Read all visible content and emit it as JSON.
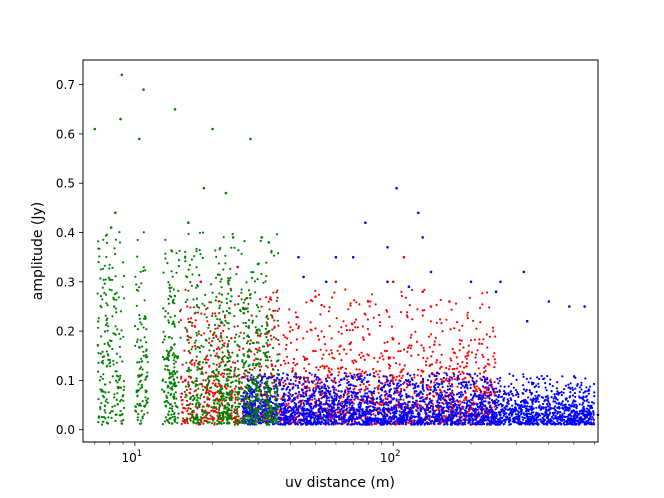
{
  "chart_data": {
    "type": "scatter",
    "title": "",
    "xlabel": "uv distance (m)",
    "ylabel": "amplitude (Jy)",
    "xscale": "log",
    "xlim": [
      6.3,
      620
    ],
    "ylim": [
      -0.025,
      0.75
    ],
    "grid": false,
    "legend": "none",
    "x_ticks": [
      {
        "value": 10,
        "label": "10",
        "exp": "1"
      },
      {
        "value": 100,
        "label": "10",
        "exp": "2"
      }
    ],
    "y_ticks": [
      {
        "value": 0.0,
        "label": "0.0"
      },
      {
        "value": 0.1,
        "label": "0.1"
      },
      {
        "value": 0.2,
        "label": "0.2"
      },
      {
        "value": 0.3,
        "label": "0.3"
      },
      {
        "value": 0.4,
        "label": "0.4"
      },
      {
        "value": 0.5,
        "label": "0.5"
      },
      {
        "value": 0.6,
        "label": "0.6"
      },
      {
        "value": 0.7,
        "label": "0.7"
      }
    ],
    "series": [
      {
        "color": "#ff0000",
        "x_range": [
          15,
          250
        ],
        "typical_amplitude_max": 0.25,
        "points": [
          [
            60,
            0.3
          ],
          [
            100,
            0.3
          ],
          [
            130,
            0.28
          ],
          [
            165,
            0.26
          ],
          [
            110,
            0.35
          ],
          [
            18,
            0.3
          ],
          [
            25,
            0.33
          ],
          [
            50,
            0.27
          ],
          [
            80,
            0.26
          ],
          [
            140,
            0.25
          ]
        ]
      },
      {
        "color": "#0000ff",
        "x_range": [
          26,
          600
        ],
        "typical_amplitude_max": 0.1,
        "points": [
          [
            103,
            0.49
          ],
          [
            125,
            0.44
          ],
          [
            78,
            0.42
          ],
          [
            130,
            0.39
          ],
          [
            95,
            0.37
          ],
          [
            60,
            0.35
          ],
          [
            70,
            0.35
          ],
          [
            320,
            0.32
          ],
          [
            480,
            0.25
          ],
          [
            550,
            0.25
          ],
          [
            140,
            0.32
          ],
          [
            200,
            0.3
          ],
          [
            250,
            0.28
          ],
          [
            260,
            0.3
          ],
          [
            400,
            0.26
          ],
          [
            330,
            0.22
          ],
          [
            45,
            0.31
          ],
          [
            55,
            0.3
          ],
          [
            115,
            0.29
          ],
          [
            95,
            0.3
          ],
          [
            43,
            0.35
          ],
          [
            620,
            0.03
          ]
        ]
      },
      {
        "color": "#008000",
        "x_range": [
          7,
          40
        ],
        "typical_amplitude_max": 0.35,
        "points": [
          [
            8.9,
            0.72
          ],
          [
            10.8,
            0.69
          ],
          [
            14.3,
            0.65
          ],
          [
            7.0,
            0.61
          ],
          [
            8.8,
            0.63
          ],
          [
            20,
            0.61
          ],
          [
            28,
            0.59
          ],
          [
            10.4,
            0.59
          ],
          [
            18.5,
            0.49
          ],
          [
            22.5,
            0.48
          ],
          [
            8.1,
            0.41
          ],
          [
            8.4,
            0.44
          ],
          [
            16.1,
            0.42
          ],
          [
            24,
            0.39
          ],
          [
            31,
            0.39
          ],
          [
            33,
            0.38
          ]
        ]
      }
    ]
  }
}
